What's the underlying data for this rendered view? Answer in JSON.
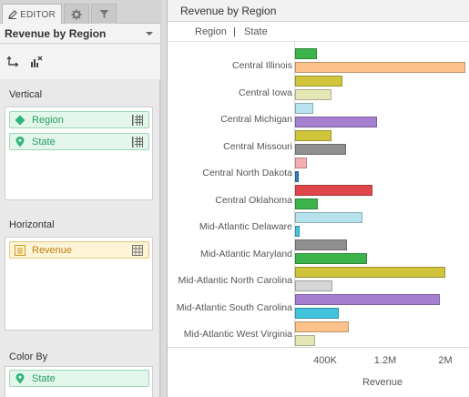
{
  "editor": {
    "tabs": [
      {
        "label": "EDITOR",
        "icon": "pencil-icon",
        "active": true
      },
      {
        "label": "",
        "icon": "gear-icon",
        "active": false
      },
      {
        "label": "",
        "icon": "filter-icon",
        "active": false
      }
    ],
    "title": "Revenue by Region",
    "tools": [
      {
        "icon": "swap-axes-icon"
      },
      {
        "icon": "clear-chart-icon"
      }
    ],
    "vertical": {
      "label": "Vertical",
      "pills": [
        {
          "label": "Region",
          "icon": "diamond-icon"
        },
        {
          "label": "State",
          "icon": "pin-icon"
        }
      ]
    },
    "horizontal": {
      "label": "Horizontal",
      "pills": [
        {
          "label": "Revenue",
          "icon": "measure-icon"
        }
      ]
    },
    "color_by": {
      "label": "Color By",
      "pills": [
        {
          "label": "State",
          "icon": "pin-icon"
        }
      ]
    }
  },
  "chart": {
    "title": "Revenue by Region",
    "breadcrumbs": [
      "Region",
      "|",
      "State"
    ]
  },
  "chart_data": {
    "type": "bar",
    "orientation": "horizontal",
    "title": "Revenue by Region",
    "xlabel": "Revenue",
    "xticks": [
      "400K",
      "1.2M",
      "2M"
    ],
    "xlim": [
      0,
      2300000
    ],
    "categories": [
      "Central Illinois",
      "Central Iowa",
      "Central Michigan",
      "Central Missouri",
      "Central North Dakota",
      "Central Oklahoma",
      "Mid-Atlantic Delaware",
      "Mid-Atlantic Maryland",
      "Mid-Atlantic North Carolina",
      "Mid-Atlantic South Carolina",
      "Mid-Atlantic West Virginia"
    ],
    "bars": [
      {
        "category": "Central Illinois",
        "value": 290000,
        "color": "#3cb44b"
      },
      {
        "category": "Central Illinois",
        "value": 2270000,
        "color": "#fdc28b"
      },
      {
        "category": "Central Illinois",
        "value": 630000,
        "color": "#cfc43a"
      },
      {
        "category": "Central Iowa",
        "value": 480000,
        "color": "#e4e7b5"
      },
      {
        "category": "Central Iowa",
        "value": 240000,
        "color": "#b7e3ee"
      },
      {
        "category": "Central Michigan",
        "value": 1090000,
        "color": "#a67fd1"
      },
      {
        "category": "Central Michigan",
        "value": 490000,
        "color": "#cfc43a"
      },
      {
        "category": "Central Missouri",
        "value": 680000,
        "color": "#8f8f8f"
      },
      {
        "category": "Central Missouri",
        "value": 160000,
        "color": "#f6aeb3"
      },
      {
        "category": "Central North Dakota",
        "value": 50000,
        "color": "#2f7fc9"
      },
      {
        "category": "Central North Dakota",
        "value": 1030000,
        "color": "#e0474c"
      },
      {
        "category": "Central Oklahoma",
        "value": 300000,
        "color": "#3cb44b"
      },
      {
        "category": "Central Oklahoma",
        "value": 900000,
        "color": "#b7e3ee"
      },
      {
        "category": "Mid-Atlantic Delaware",
        "value": 60000,
        "color": "#3fc4dc"
      },
      {
        "category": "Mid-Atlantic Maryland",
        "value": 690000,
        "color": "#8f8f8f"
      },
      {
        "category": "Mid-Atlantic Maryland",
        "value": 960000,
        "color": "#3cb44b"
      },
      {
        "category": "Mid-Atlantic Maryland",
        "value": 2000000,
        "color": "#cfc43a"
      },
      {
        "category": "Mid-Atlantic North Carolina",
        "value": 500000,
        "color": "#d5d5d5"
      },
      {
        "category": "Mid-Atlantic North Carolina",
        "value": 1930000,
        "color": "#a67fd1"
      },
      {
        "category": "Mid-Atlantic South Carolina",
        "value": 580000,
        "color": "#3fc4dc"
      },
      {
        "category": "Mid-Atlantic South Carolina",
        "value": 720000,
        "color": "#fdc28b"
      },
      {
        "category": "Mid-Atlantic West Virginia",
        "value": 270000,
        "color": "#e4e7b5"
      }
    ]
  }
}
